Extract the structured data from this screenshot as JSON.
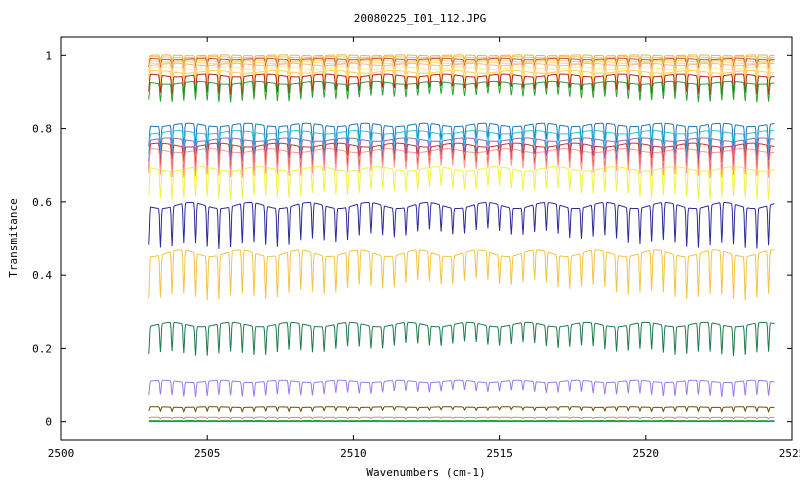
{
  "chart_data": {
    "type": "line",
    "title": "20080225_I01_112.JPG",
    "xlabel": "Wavenumbers (cm-1)",
    "ylabel": "Transmitance",
    "xlim": [
      2500,
      2525
    ],
    "ylim": [
      -0.05,
      1.05
    ],
    "x_ticks": [
      2500,
      2505,
      2510,
      2515,
      2520,
      2525
    ],
    "x_tick_labels": [
      "2500",
      "2505",
      "2510",
      "2515",
      "2520",
      "2525"
    ],
    "y_ticks": [
      0,
      0.2,
      0.4,
      0.6,
      0.8,
      1
    ],
    "y_tick_labels": [
      "0",
      "0.2",
      "0.4",
      "0.6",
      "0.8",
      "1"
    ],
    "x_range": [
      2503.0,
      2524.4
    ],
    "line_period_cm1": 0.4,
    "grid": false,
    "legend": "none",
    "series": [
      {
        "baseline": 1.0,
        "depth": 0.015,
        "color": "#e8b34c"
      },
      {
        "baseline": 0.995,
        "depth": 0.02,
        "color": "#f2c94e"
      },
      {
        "baseline": 0.99,
        "depth": 0.025,
        "color": "#c94d4d"
      },
      {
        "baseline": 0.985,
        "depth": 0.03,
        "color": "#ffd27a"
      },
      {
        "baseline": 0.98,
        "depth": 0.035,
        "color": "#ffe066"
      },
      {
        "baseline": 0.975,
        "depth": 0.04,
        "color": "#f7b5a0"
      },
      {
        "baseline": 0.965,
        "depth": 0.045,
        "color": "#ffef8a"
      },
      {
        "baseline": 0.955,
        "depth": 0.05,
        "color": "#ffd24d"
      },
      {
        "baseline": 0.945,
        "depth": 0.05,
        "color": "#b22222"
      },
      {
        "baseline": 0.925,
        "depth": 0.05,
        "color": "#2ca02c"
      },
      {
        "baseline": 0.81,
        "depth": 0.06,
        "color": "#1f77b4"
      },
      {
        "baseline": 0.79,
        "depth": 0.06,
        "color": "#2ec4e0"
      },
      {
        "baseline": 0.77,
        "depth": 0.06,
        "color": "#9467bd"
      },
      {
        "baseline": 0.755,
        "depth": 0.07,
        "color": "#c0392b"
      },
      {
        "baseline": 0.74,
        "depth": 0.07,
        "color": "#ff9999"
      },
      {
        "baseline": 0.69,
        "depth": 0.08,
        "color": "#f1f145"
      },
      {
        "baseline": 0.59,
        "depth": 0.11,
        "color": "#2a2a9a"
      },
      {
        "baseline": 0.46,
        "depth": 0.12,
        "color": "#f5c342"
      },
      {
        "baseline": 0.265,
        "depth": 0.08,
        "color": "#1f7a4a"
      },
      {
        "baseline": 0.11,
        "depth": 0.04,
        "color": "#9b7be8"
      },
      {
        "baseline": 0.04,
        "depth": 0.012,
        "color": "#6b4a00"
      },
      {
        "baseline": 0.012,
        "depth": 0.004,
        "color": "#d080a0"
      },
      {
        "baseline": 0.003,
        "depth": 0.001,
        "color": "#2ca02c"
      },
      {
        "baseline": 0.0,
        "depth": 0.0,
        "color": "#1f77b4"
      }
    ]
  }
}
